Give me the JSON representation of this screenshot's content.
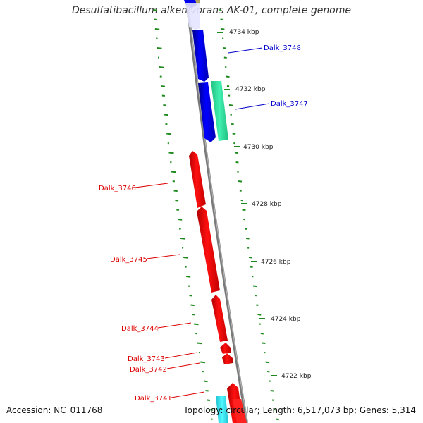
{
  "title": "Desulfatibacillum alkenivorans AK-01, complete genome",
  "footer": {
    "accession": "Accession: NC_011768",
    "summary": "Topology: circular; Length: 6,517,073 bp; Genes: 5,314"
  },
  "scale_ticks": [
    "4734 kbp",
    "4732 kbp",
    "4730 kbp",
    "4728 kbp",
    "4726 kbp",
    "4724 kbp",
    "4722 kbp"
  ],
  "genes": [
    {
      "label": "Dalk_3748",
      "strand": "reverse",
      "color": "#0000ee"
    },
    {
      "label": "Dalk_3747",
      "strand": "reverse",
      "color": "#0000ee"
    },
    {
      "label": "Dalk_3746",
      "strand": "forward",
      "color": "#ee0000"
    },
    {
      "label": "Dalk_3745",
      "strand": "forward",
      "color": "#ee0000"
    },
    {
      "label": "Dalk_3744",
      "strand": "forward",
      "color": "#ee0000"
    },
    {
      "label": "Dalk_3743",
      "strand": "forward",
      "color": "#ee0000"
    },
    {
      "label": "Dalk_3742",
      "strand": "forward",
      "color": "#ee0000"
    },
    {
      "label": "Dalk_3741",
      "strand": "forward",
      "color": "#ee0000"
    }
  ],
  "colors": {
    "backbone": "#7a7a7a",
    "gc_ticks": "#1e8a1e",
    "rna_feature": "#33e6a0",
    "cyan_feature": "#33e6f0",
    "olive_feature": "#b0a060"
  }
}
